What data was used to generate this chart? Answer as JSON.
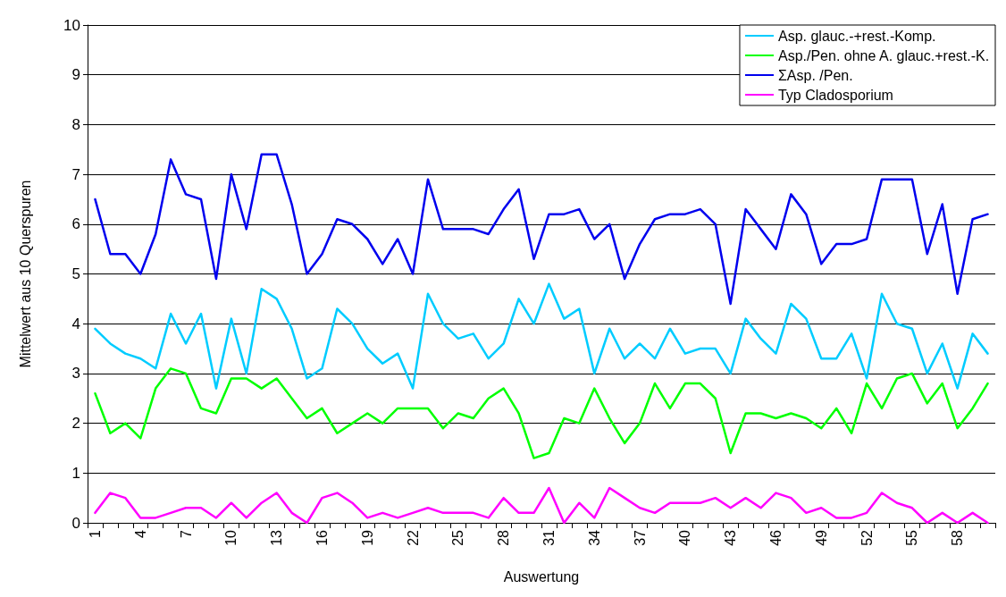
{
  "chart_data": {
    "type": "line",
    "xlabel": "Auswertung",
    "ylabel": "Mittelwert aus 10 Querspuren",
    "categories": [
      "1",
      null,
      null,
      "4",
      null,
      null,
      "7",
      null,
      null,
      "10",
      null,
      null,
      "13",
      null,
      null,
      "16",
      null,
      null,
      "19",
      null,
      null,
      "22",
      null,
      null,
      "25",
      null,
      null,
      "28",
      null,
      null,
      "31",
      null,
      null,
      "34",
      null,
      null,
      "37",
      null,
      null,
      "40",
      null,
      null,
      "43",
      null,
      null,
      "46",
      null,
      null,
      "49",
      null,
      null,
      "52",
      null,
      null,
      "55",
      null,
      null,
      "58",
      null,
      null
    ],
    "series": [
      {
        "name": "Asp. glauc.-+rest.-Komp.",
        "color": "#00ccff",
        "values": [
          3.9,
          3.6,
          3.4,
          3.3,
          3.1,
          4.2,
          3.6,
          4.2,
          2.7,
          4.1,
          3.0,
          4.7,
          4.5,
          3.9,
          2.9,
          3.1,
          4.3,
          4.0,
          3.5,
          3.2,
          3.4,
          2.7,
          4.6,
          4.0,
          3.7,
          3.8,
          3.3,
          3.6,
          4.5,
          4.0,
          4.8,
          4.1,
          4.3,
          3.0,
          3.9,
          3.3,
          3.6,
          3.3,
          3.9,
          3.4,
          3.5,
          3.5,
          3.0,
          4.1,
          3.7,
          3.4,
          4.4,
          4.1,
          3.3,
          3.3,
          3.8,
          2.9,
          4.6,
          4.0,
          3.9,
          3.0,
          3.6,
          2.7,
          3.8,
          3.4
        ]
      },
      {
        "name": "Asp./Pen. ohne A. glauc.+rest.-K.",
        "color": "#00ff00",
        "values": [
          2.6,
          1.8,
          2.0,
          1.7,
          2.7,
          3.1,
          3.0,
          2.3,
          2.2,
          2.9,
          2.9,
          2.7,
          2.9,
          2.5,
          2.1,
          2.3,
          1.8,
          2.0,
          2.2,
          2.0,
          2.3,
          2.3,
          2.3,
          1.9,
          2.2,
          2.1,
          2.5,
          2.7,
          2.2,
          1.3,
          1.4,
          2.1,
          2.0,
          2.7,
          2.1,
          1.6,
          2.0,
          2.8,
          2.3,
          2.8,
          2.8,
          2.5,
          1.4,
          2.2,
          2.2,
          2.1,
          2.2,
          2.1,
          1.9,
          2.3,
          1.8,
          2.8,
          2.3,
          2.9,
          3.0,
          2.4,
          2.8,
          1.9,
          2.3,
          2.8
        ]
      },
      {
        "name": "ΣAsp. /Pen.",
        "color": "#0000ee",
        "values": [
          6.5,
          5.4,
          5.4,
          5.0,
          5.8,
          7.3,
          6.6,
          6.5,
          4.9,
          7.0,
          5.9,
          7.4,
          7.4,
          6.4,
          5.0,
          5.4,
          6.1,
          6.0,
          5.7,
          5.2,
          5.7,
          5.0,
          6.9,
          5.9,
          5.9,
          5.9,
          5.8,
          6.3,
          6.7,
          5.3,
          6.2,
          6.2,
          6.3,
          5.7,
          6.0,
          4.9,
          5.6,
          6.1,
          6.2,
          6.2,
          6.3,
          6.0,
          4.4,
          6.3,
          5.9,
          5.5,
          6.6,
          6.2,
          5.2,
          5.6,
          5.6,
          5.7,
          6.9,
          6.9,
          6.9,
          5.4,
          6.4,
          4.6,
          6.1,
          6.2
        ]
      },
      {
        "name": "Typ Cladosporium",
        "color": "#ff00ff",
        "values": [
          0.2,
          0.6,
          0.5,
          0.1,
          0.1,
          0.2,
          0.3,
          0.3,
          0.1,
          0.4,
          0.1,
          0.4,
          0.6,
          0.2,
          0.0,
          0.5,
          0.6,
          0.4,
          0.1,
          0.2,
          0.1,
          0.2,
          0.3,
          0.2,
          0.2,
          0.2,
          0.1,
          0.5,
          0.2,
          0.2,
          0.7,
          0.0,
          0.4,
          0.1,
          0.7,
          0.5,
          0.3,
          0.2,
          0.4,
          0.4,
          0.4,
          0.5,
          0.3,
          0.5,
          0.3,
          0.6,
          0.5,
          0.2,
          0.3,
          0.1,
          0.1,
          0.2,
          0.6,
          0.4,
          0.3,
          0.0,
          0.2,
          0.0,
          0.2,
          0.0
        ]
      }
    ],
    "ylim": [
      0,
      10
    ],
    "yticks": [
      0,
      1,
      2,
      3,
      4,
      5,
      6,
      7,
      8,
      9,
      10
    ],
    "grid": "y",
    "legend": "top right",
    "marker": "none",
    "line_style": "solid"
  }
}
